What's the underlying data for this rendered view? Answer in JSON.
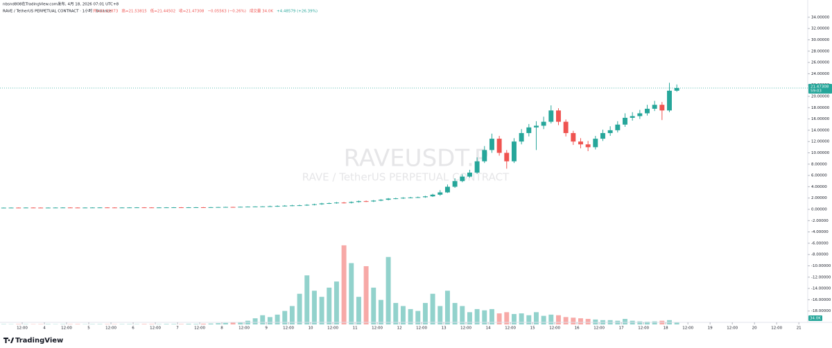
{
  "header": {
    "publisher": "nbsnd808在TradingView.com发布, 4月 18, 2026 07:01 UTC+8",
    "symbol": "RAVE / TetherUS PERPETUAL CONTRACT · 1小时 · Binance",
    "ohlc": [
      "开=21.52873",
      "高=21.53815",
      "低=21.44502",
      "收=21.47308",
      "−0.05563 (−0.26%)"
    ],
    "volume": "成交量 34.0K",
    "change": "+4.48579 (+26.39%)"
  },
  "watermark": {
    "title": "RAVEUSDT.P",
    "subtitle": "RAVE / TetherUS PERPETUAL CONTRACT"
  },
  "brand": "TradingView",
  "chart_data": {
    "type": "candlestick",
    "up_color": "#26a69a",
    "down_color": "#ef5350",
    "xlim": [
      0,
      109.2
    ],
    "xticks": [
      {
        "value": 3,
        "label": "12:00"
      },
      {
        "value": 6,
        "label": "4"
      },
      {
        "value": 9,
        "label": "12:00"
      },
      {
        "value": 12,
        "label": "5"
      },
      {
        "value": 15,
        "label": "12:00"
      },
      {
        "value": 18,
        "label": "6"
      },
      {
        "value": 21,
        "label": "12:00"
      },
      {
        "value": 24,
        "label": "7"
      },
      {
        "value": 27,
        "label": "12:00"
      },
      {
        "value": 30,
        "label": "8"
      },
      {
        "value": 33,
        "label": "12:00"
      },
      {
        "value": 36,
        "label": "9"
      },
      {
        "value": 39,
        "label": "12:00"
      },
      {
        "value": 42,
        "label": "10"
      },
      {
        "value": 45,
        "label": "12:00"
      },
      {
        "value": 48,
        "label": "11"
      },
      {
        "value": 51,
        "label": "12:00"
      },
      {
        "value": 54,
        "label": "12"
      },
      {
        "value": 57,
        "label": "12:00"
      },
      {
        "value": 60,
        "label": "13"
      },
      {
        "value": 63,
        "label": "12:00"
      },
      {
        "value": 66,
        "label": "14"
      },
      {
        "value": 69,
        "label": "12:00"
      },
      {
        "value": 72,
        "label": "15"
      },
      {
        "value": 75,
        "label": "12:00"
      },
      {
        "value": 78,
        "label": "16"
      },
      {
        "value": 81,
        "label": "12:00"
      },
      {
        "value": 84,
        "label": "17"
      },
      {
        "value": 87,
        "label": "12:00"
      },
      {
        "value": 90,
        "label": "18"
      },
      {
        "value": 93,
        "label": "12:00"
      },
      {
        "value": 96,
        "label": "19"
      },
      {
        "value": 99,
        "label": "12:00"
      },
      {
        "value": 102,
        "label": "20"
      },
      {
        "value": 105,
        "label": "12:00"
      },
      {
        "value": 108,
        "label": "21"
      }
    ],
    "ylim": [
      -20,
      37.05
    ],
    "yticks": [
      {
        "value": 34,
        "label": "34.00000"
      },
      {
        "value": 32,
        "label": "32.00000"
      },
      {
        "value": 30,
        "label": "30.00000"
      },
      {
        "value": 28,
        "label": "28.00000"
      },
      {
        "value": 26,
        "label": "26.00000"
      },
      {
        "value": 24,
        "label": "24.00000"
      },
      {
        "value": 22,
        "label": "22.00000"
      },
      {
        "value": 20,
        "label": "20.00000"
      },
      {
        "value": 18,
        "label": "18.00000"
      },
      {
        "value": 16,
        "label": "16.00000"
      },
      {
        "value": 14,
        "label": "14.00000"
      },
      {
        "value": 12,
        "label": "12.00000"
      },
      {
        "value": 10,
        "label": "10.00000"
      },
      {
        "value": 8,
        "label": "8.00000"
      },
      {
        "value": 6,
        "label": "6.00000"
      },
      {
        "value": 4,
        "label": "4.00000"
      },
      {
        "value": 2,
        "label": "2.00000"
      },
      {
        "value": 0,
        "label": "0.00000"
      },
      {
        "value": -2,
        "label": "-2.00000"
      },
      {
        "value": -4,
        "label": "-4.00000"
      },
      {
        "value": -6,
        "label": "-6.00000"
      },
      {
        "value": -8,
        "label": "-8.00000"
      },
      {
        "value": -10,
        "label": "-10.00000"
      },
      {
        "value": -12,
        "label": "-12.00000"
      },
      {
        "value": -14,
        "label": "-14.00000"
      },
      {
        "value": -16,
        "label": "-16.00000"
      },
      {
        "value": -18,
        "label": "-18.00000"
      }
    ],
    "open": [
      0.3,
      0.3,
      0.31,
      0.3,
      0.32,
      0.31,
      0.3,
      0.31,
      0.32,
      0.33,
      0.32,
      0.31,
      0.32,
      0.33,
      0.34,
      0.33,
      0.32,
      0.33,
      0.34,
      0.35,
      0.34,
      0.33,
      0.34,
      0.35,
      0.36,
      0.35,
      0.36,
      0.37,
      0.36,
      0.38,
      0.4,
      0.42,
      0.41,
      0.45,
      0.48,
      0.5,
      0.52,
      0.55,
      0.6,
      0.65,
      0.7,
      0.72,
      0.8,
      0.9,
      1.05,
      1.1,
      1.2,
      1.15,
      1.3,
      1.45,
      1.4,
      1.55,
      1.7,
      1.9,
      1.95,
      2.05,
      2.1,
      2.15,
      2.3,
      2.6,
      3.0,
      4.0,
      5.0,
      5.8,
      6.5,
      8.5,
      10.5,
      12.5,
      10.0,
      8.5,
      12.0,
      13.5,
      14.5,
      14.8,
      15.5,
      17.5,
      15.5,
      13.5,
      12.0,
      11.5,
      11.0,
      12.5,
      13.5,
      14.0,
      15.0,
      16.2,
      16.5,
      17.0,
      17.8,
      18.5,
      17.5,
      21.0
    ],
    "high": [
      0.33,
      0.34,
      0.34,
      0.35,
      0.35,
      0.34,
      0.34,
      0.35,
      0.36,
      0.36,
      0.35,
      0.35,
      0.36,
      0.37,
      0.37,
      0.36,
      0.36,
      0.37,
      0.38,
      0.38,
      0.37,
      0.37,
      0.38,
      0.39,
      0.39,
      0.39,
      0.4,
      0.4,
      0.41,
      0.43,
      0.45,
      0.45,
      0.48,
      0.51,
      0.53,
      0.55,
      0.65,
      0.7,
      0.75,
      0.8,
      0.82,
      0.9,
      1.0,
      1.15,
      1.2,
      1.3,
      1.3,
      1.4,
      1.55,
      1.55,
      1.65,
      1.8,
      2.0,
      2.05,
      2.15,
      2.2,
      2.25,
      2.4,
      2.75,
      3.4,
      4.4,
      5.5,
      6.2,
      7.0,
      9.2,
      11.2,
      13.4,
      13.0,
      10.5,
      12.6,
      14.2,
      15.1,
      15.6,
      16.4,
      18.4,
      17.9,
      15.9,
      13.9,
      12.6,
      12.1,
      13.0,
      14.1,
      14.7,
      15.6,
      17.0,
      17.2,
      17.6,
      18.5,
      19.2,
      19.0,
      22.4,
      22.1
    ],
    "low": [
      0.27,
      0.27,
      0.27,
      0.27,
      0.28,
      0.27,
      0.27,
      0.28,
      0.29,
      0.29,
      0.28,
      0.28,
      0.29,
      0.3,
      0.3,
      0.29,
      0.29,
      0.3,
      0.31,
      0.31,
      0.3,
      0.3,
      0.31,
      0.32,
      0.32,
      0.32,
      0.33,
      0.33,
      0.33,
      0.35,
      0.37,
      0.38,
      0.38,
      0.42,
      0.45,
      0.47,
      0.42,
      0.45,
      0.5,
      0.55,
      0.6,
      0.62,
      0.7,
      0.8,
      0.95,
      1.0,
      1.05,
      1.05,
      1.2,
      1.3,
      1.3,
      1.45,
      1.6,
      1.8,
      1.85,
      1.95,
      2.0,
      2.05,
      2.2,
      2.4,
      2.9,
      3.8,
      4.8,
      5.6,
      6.3,
      8.2,
      10.0,
      9.5,
      7.2,
      8.2,
      11.5,
      12.9,
      10.5,
      14.2,
      15.2,
      14.9,
      12.9,
      11.4,
      10.8,
      10.3,
      10.6,
      12.1,
      13.0,
      13.6,
      14.6,
      15.7,
      16.0,
      16.6,
      17.4,
      15.8,
      17.2,
      20.8
    ],
    "close": [
      0.3,
      0.31,
      0.3,
      0.32,
      0.31,
      0.3,
      0.31,
      0.32,
      0.33,
      0.32,
      0.31,
      0.32,
      0.33,
      0.34,
      0.33,
      0.32,
      0.33,
      0.34,
      0.35,
      0.34,
      0.33,
      0.34,
      0.35,
      0.36,
      0.35,
      0.36,
      0.37,
      0.36,
      0.38,
      0.4,
      0.42,
      0.41,
      0.45,
      0.48,
      0.5,
      0.52,
      0.55,
      0.6,
      0.65,
      0.7,
      0.72,
      0.8,
      0.9,
      1.05,
      1.1,
      1.2,
      1.15,
      1.3,
      1.45,
      1.4,
      1.55,
      1.7,
      1.9,
      1.95,
      2.05,
      2.1,
      2.15,
      2.3,
      2.6,
      3.0,
      4.0,
      5.0,
      5.8,
      6.5,
      8.5,
      10.5,
      12.5,
      10.0,
      8.5,
      12.0,
      13.5,
      14.5,
      14.8,
      15.5,
      17.5,
      15.5,
      13.5,
      12.0,
      11.5,
      11.0,
      12.5,
      13.5,
      14.0,
      15.0,
      16.2,
      16.5,
      17.0,
      17.8,
      18.5,
      17.5,
      21.0,
      21.47308
    ],
    "volume": [
      5,
      4,
      6,
      5,
      4,
      5,
      6,
      4,
      5,
      5,
      6,
      4,
      5,
      6,
      5,
      4,
      5,
      6,
      5,
      7,
      6,
      5,
      8,
      7,
      6,
      10,
      8,
      12,
      15,
      20,
      25,
      30,
      40,
      60,
      100,
      150,
      120,
      160,
      220,
      300,
      500,
      800,
      550,
      450,
      600,
      700,
      1290,
      1000,
      450,
      950,
      600,
      400,
      1100,
      350,
      300,
      250,
      220,
      350,
      500,
      300,
      550,
      350,
      300,
      200,
      250,
      230,
      250,
      180,
      200,
      170,
      180,
      150,
      200,
      140,
      160,
      150,
      120,
      110,
      100,
      90,
      80,
      70,
      70,
      60,
      90,
      60,
      50,
      45,
      50,
      60,
      70,
      34
    ],
    "volume_label": "34.0K",
    "volume_lim": [
      0,
      1300
    ],
    "countdown": "59:03"
  }
}
